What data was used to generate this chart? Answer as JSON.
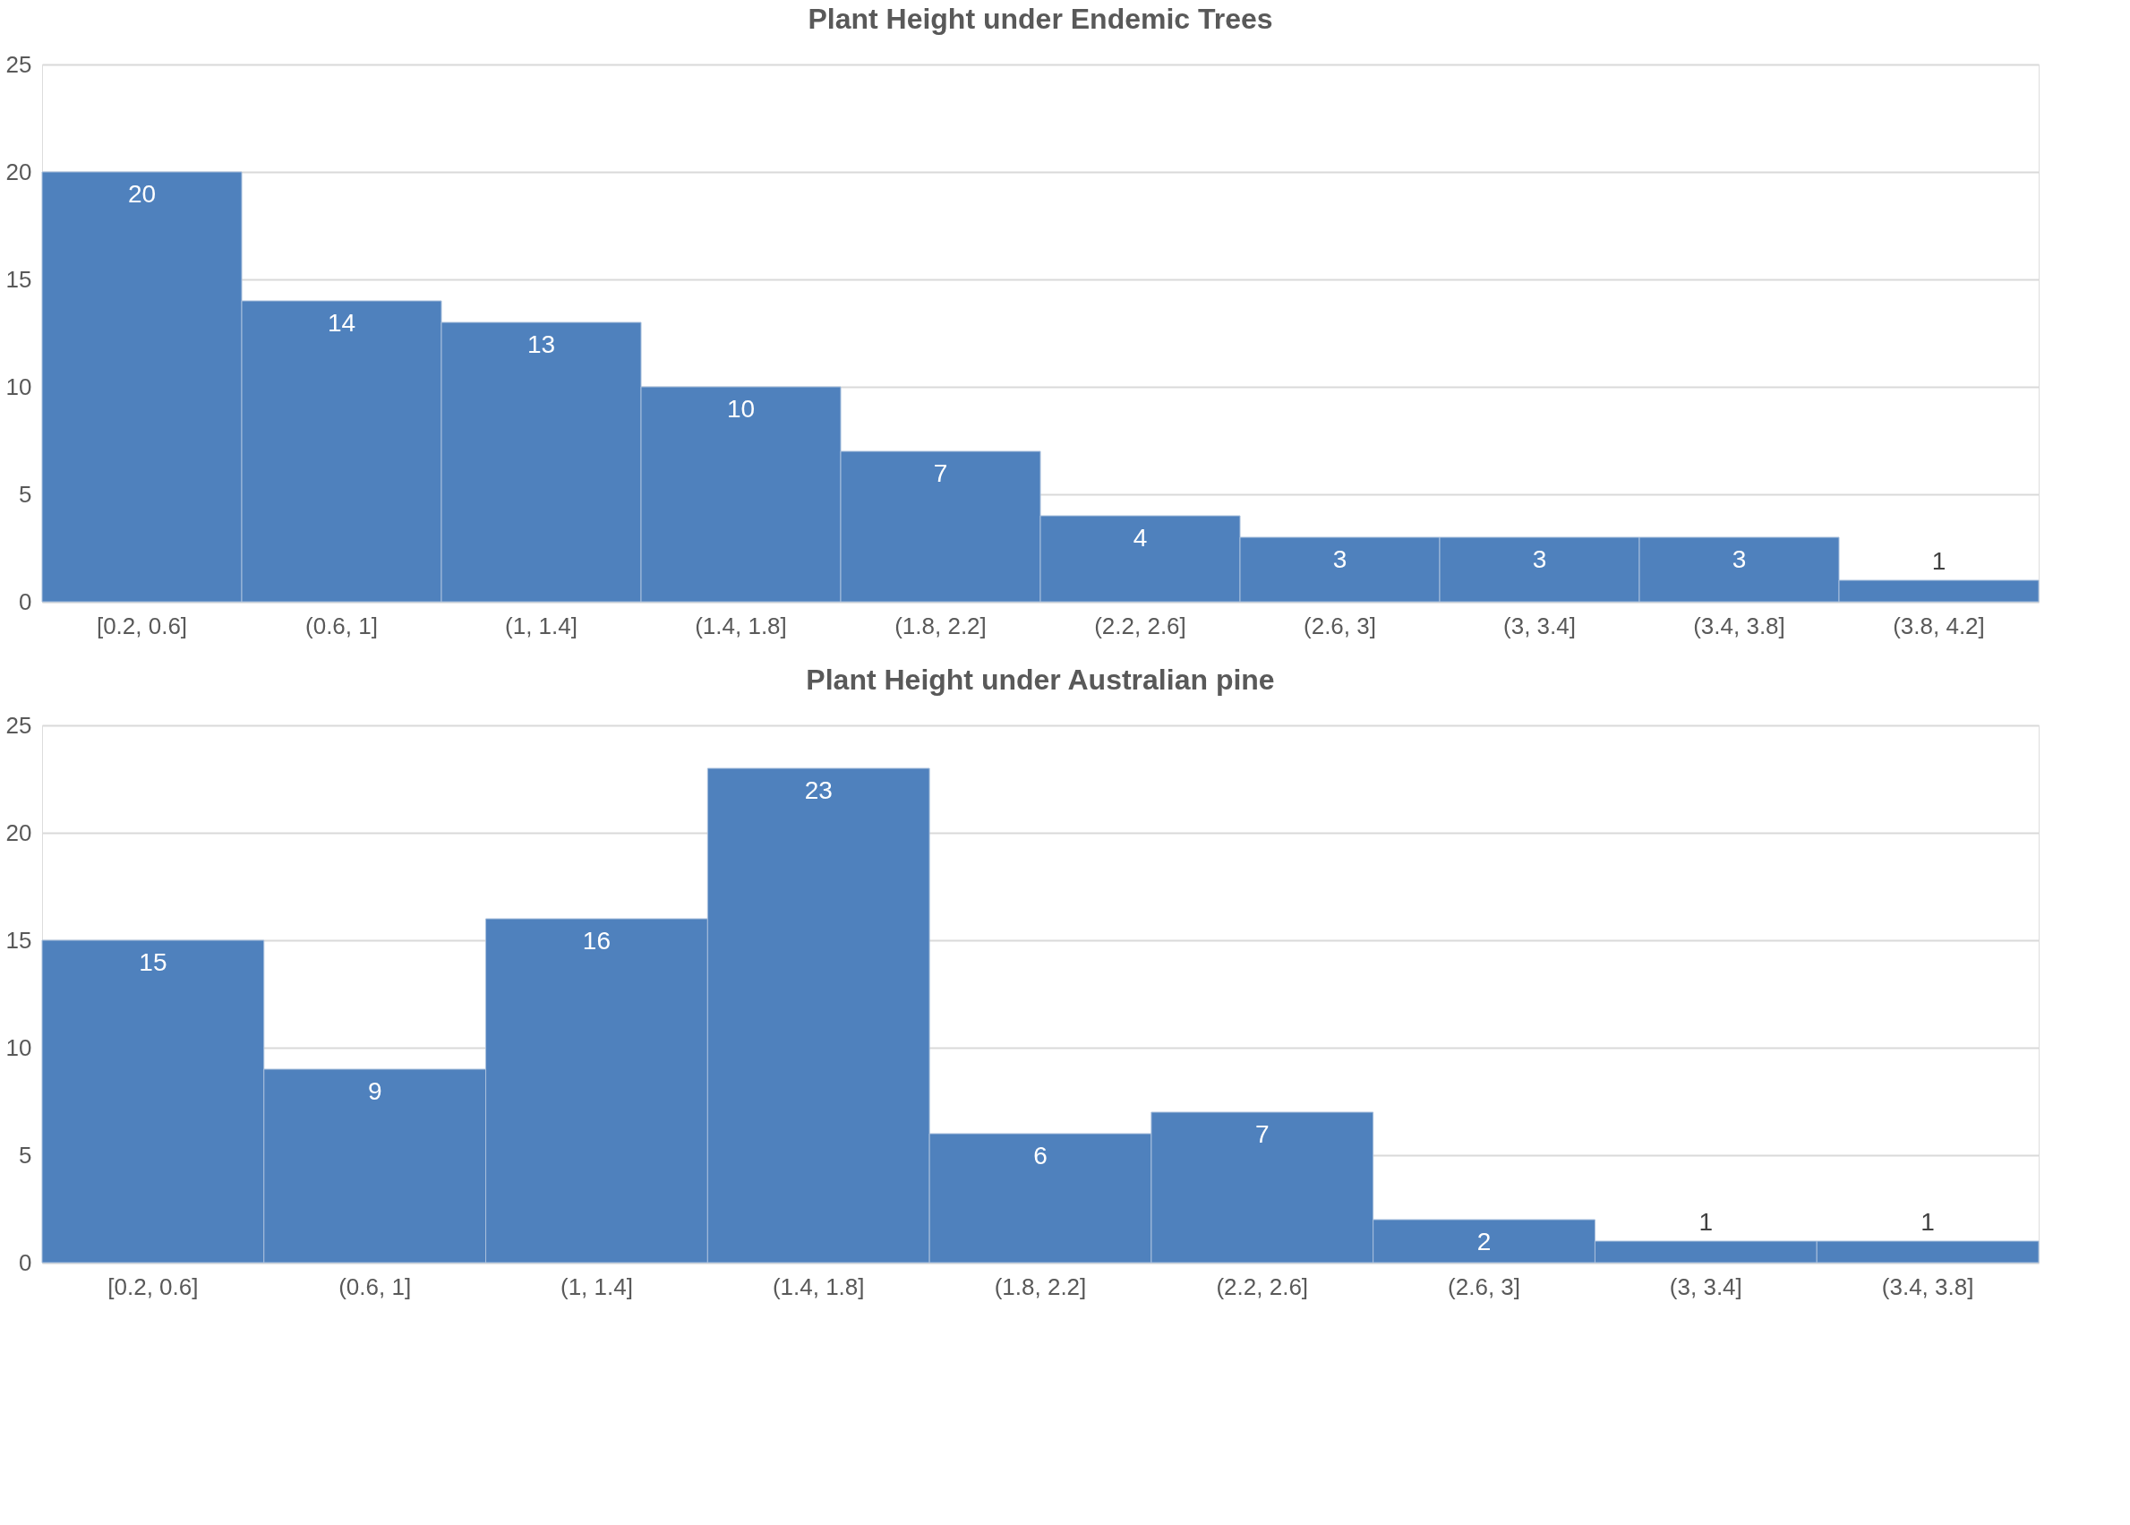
{
  "chart_data": [
    {
      "type": "bar",
      "title": "Plant Height under Endemic Trees",
      "categories": [
        "[0.2, 0.6]",
        "(0.6, 1]",
        "(1, 1.4]",
        "(1.4, 1.8]",
        "(1.8, 2.2]",
        "(2.2, 2.6]",
        "(2.6, 3]",
        "(3, 3.4]",
        "(3.4, 3.8]",
        "(3.8, 4.2]"
      ],
      "values": [
        20,
        14,
        13,
        10,
        7,
        4,
        3,
        3,
        3,
        1
      ],
      "color": "#4f81bd",
      "ylim": [
        0,
        25
      ],
      "yticks": [
        0,
        5,
        10,
        15,
        20,
        25
      ],
      "grid": "y",
      "data_labels": true
    },
    {
      "type": "bar",
      "title": "Plant Height under Australian pine",
      "categories": [
        "[0.2, 0.6]",
        "(0.6, 1]",
        "(1, 1.4]",
        "(1.4, 1.8]",
        "(1.8, 2.2]",
        "(2.2, 2.6]",
        "(2.6, 3]",
        "(3, 3.4]",
        "(3.4, 3.8]"
      ],
      "values": [
        15,
        9,
        16,
        23,
        6,
        7,
        2,
        1,
        1
      ],
      "color": "#4f81bd",
      "ylim": [
        0,
        25
      ],
      "yticks": [
        0,
        5,
        10,
        15,
        20,
        25
      ],
      "grid": "y",
      "data_labels": true
    }
  ]
}
